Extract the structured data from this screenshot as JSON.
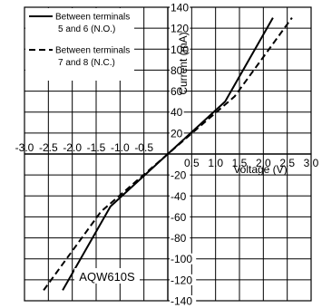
{
  "chart_data": {
    "type": "line",
    "title": "",
    "xlabel": "Voltage (V)",
    "ylabel": "Current (mA)",
    "xlim": [
      -3.0,
      3.0
    ],
    "ylim": [
      -140,
      140
    ],
    "x_ticks": [
      -3.0,
      -2.5,
      -2.0,
      -1.5,
      -1.0,
      -0.5,
      0.5,
      1.0,
      1.5,
      2.0,
      2.5,
      3.0
    ],
    "x_tick_labels": [
      "-3.0",
      "-2.5",
      "-2.0",
      "-1.5",
      "-1.0",
      "-0.5",
      "0.5",
      "1.0",
      "1.5",
      "2.0",
      "2.5",
      "3.0"
    ],
    "y_ticks": [
      140,
      120,
      100,
      80,
      60,
      40,
      20,
      -20,
      -40,
      -60,
      -80,
      -100,
      -120,
      -140
    ],
    "y_tick_labels": [
      "140",
      "120",
      "100",
      "80",
      "60",
      "40",
      "20",
      "-20",
      "-40",
      "-60",
      "-80",
      "-100",
      "-120",
      "-140"
    ],
    "grid": true,
    "legend_position": "top-left",
    "annotation": "AQW610S",
    "series": [
      {
        "name": "Between terminals 5 and 6 (N.O.)",
        "line_style": "solid",
        "points": [
          [
            -2.2,
            -130
          ],
          [
            -1.2,
            -50
          ],
          [
            0,
            0
          ],
          [
            1.2,
            50
          ],
          [
            2.2,
            130
          ]
        ]
      },
      {
        "name": "Between terminals 7 and 8 (N.C.)",
        "line_style": "dashed",
        "points": [
          [
            -2.6,
            -130
          ],
          [
            -1.4,
            -55
          ],
          [
            0,
            0
          ],
          [
            1.4,
            55
          ],
          [
            2.6,
            130
          ]
        ]
      }
    ],
    "legend": [
      {
        "line1": "Between terminals",
        "line2": "5 and 6 (N.O.)",
        "style": "solid"
      },
      {
        "line1": "Between terminals",
        "line2": "7 and 8 (N.C.)",
        "style": "dashed"
      }
    ]
  }
}
